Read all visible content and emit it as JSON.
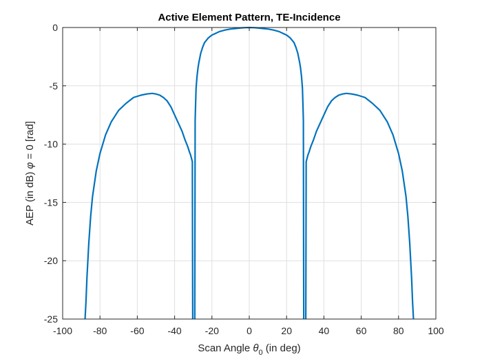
{
  "chart_data": {
    "type": "line",
    "title": "Active Element Pattern, TE-Incidence",
    "xlabel": {
      "prefix": "Scan Angle ",
      "symbol": "θ",
      "subscript": "0",
      "suffix": " (in deg)"
    },
    "ylabel": {
      "prefix": "AEP (in dB) ",
      "symbol": "φ",
      "suffix": " = 0 [rad]"
    },
    "xlim": [
      -100,
      100
    ],
    "ylim": [
      -25,
      0
    ],
    "xticks": [
      -100,
      -80,
      -60,
      -40,
      -20,
      0,
      20,
      40,
      60,
      80,
      100
    ],
    "yticks": [
      -25,
      -20,
      -15,
      -10,
      -5,
      0
    ],
    "grid": true,
    "legend": "none",
    "colors": {
      "line": "#0072BD",
      "grid": "#dfdfdf",
      "axis": "#262626"
    },
    "segments": [
      {
        "x": [
          -88,
          -87.5,
          -87,
          -86,
          -85,
          -84,
          -82,
          -80,
          -77,
          -74,
          -70,
          -66,
          -62,
          -58,
          -55,
          -52,
          -50,
          -48,
          -46,
          -44,
          -42,
          -40,
          -38,
          -36,
          -34.5,
          -33,
          -32,
          -31.5,
          -31,
          -30.5,
          -30.3
        ],
        "y": [
          -25,
          -23.5,
          -21.5,
          -18.5,
          -16.2,
          -14.5,
          -12.3,
          -10.8,
          -9.2,
          -8.1,
          -7.1,
          -6.5,
          -6.0,
          -5.8,
          -5.7,
          -5.65,
          -5.7,
          -5.8,
          -6.0,
          -6.3,
          -6.8,
          -7.5,
          -8.2,
          -8.9,
          -9.6,
          -10.2,
          -10.7,
          -10.9,
          -11.2,
          -11.5,
          -25
        ]
      },
      {
        "x": [
          -29.2,
          -29.0,
          -28.8,
          -28.5,
          -28.0,
          -27.5,
          -27.0,
          -26.0,
          -25.0,
          -24.0,
          -22.0,
          -20.0,
          -18.0,
          -16.0,
          -13.0,
          -10.0,
          -7.0,
          -4.0,
          -2.0,
          0,
          2.0,
          4.0,
          7.0,
          10.0,
          13.0,
          16.0,
          18.0,
          20.0,
          22.0,
          24.0,
          25.0,
          26.0,
          27.0,
          27.5,
          28.0,
          28.5,
          28.8,
          29.0,
          29.2
        ],
        "y": [
          -25,
          -8.0,
          -6.8,
          -5.2,
          -4.2,
          -3.5,
          -3.0,
          -2.2,
          -1.7,
          -1.3,
          -0.9,
          -0.65,
          -0.5,
          -0.35,
          -0.22,
          -0.13,
          -0.08,
          -0.03,
          -0.01,
          0,
          -0.01,
          -0.03,
          -0.08,
          -0.13,
          -0.22,
          -0.35,
          -0.5,
          -0.65,
          -0.9,
          -1.3,
          -1.7,
          -2.2,
          -3.0,
          -3.5,
          -4.2,
          -5.2,
          -6.8,
          -8.0,
          -25
        ]
      },
      {
        "x": [
          30.3,
          30.5,
          31,
          31.5,
          32,
          33,
          34.5,
          36,
          38,
          40,
          42,
          44,
          46,
          48,
          50,
          52,
          55,
          58,
          62,
          66,
          70,
          74,
          77,
          80,
          82,
          84,
          85,
          86,
          87,
          87.5,
          88
        ],
        "y": [
          -25,
          -11.5,
          -11.2,
          -10.9,
          -10.7,
          -10.2,
          -9.6,
          -8.9,
          -8.2,
          -7.5,
          -6.8,
          -6.3,
          -6.0,
          -5.8,
          -5.7,
          -5.65,
          -5.7,
          -5.8,
          -6.0,
          -6.5,
          -7.1,
          -8.1,
          -9.2,
          -10.8,
          -12.3,
          -14.5,
          -16.2,
          -18.5,
          -21.5,
          -23.5,
          -25
        ]
      }
    ]
  }
}
